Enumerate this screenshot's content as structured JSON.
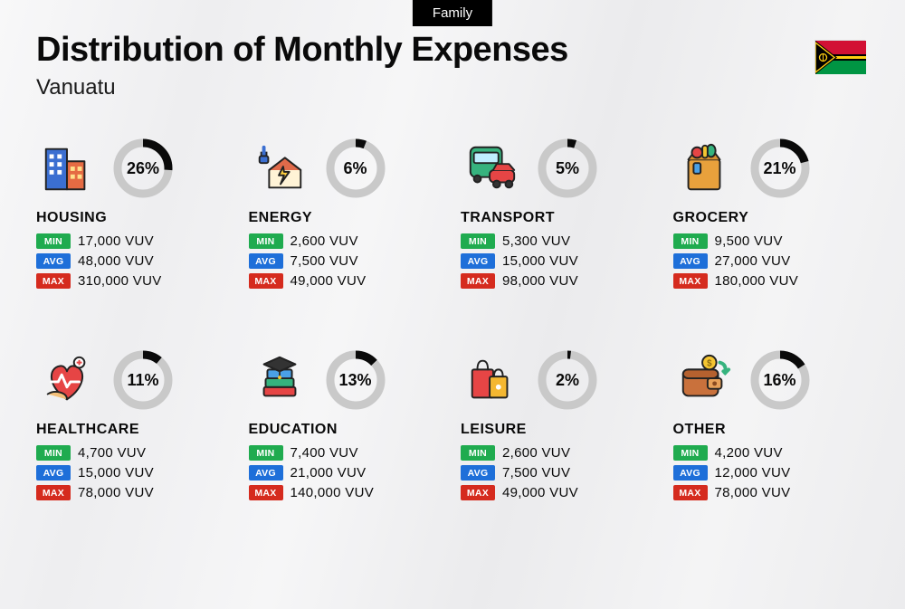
{
  "tag": "Family",
  "title": "Distribution of Monthly Expenses",
  "subtitle": "Vanuatu",
  "currency": "VUV",
  "colors": {
    "min_badge": "#1fab4f",
    "avg_badge": "#1e6fd9",
    "max_badge": "#d52b1e",
    "ring_track": "#c9c9c9",
    "ring_fill": "#0a0a0a",
    "text": "#0a0a0a"
  },
  "badges": {
    "min": "MIN",
    "avg": "AVG",
    "max": "MAX"
  },
  "ring": {
    "size": 72,
    "stroke": 9,
    "radius": 28
  },
  "flag": {
    "colors": {
      "red": "#d21034",
      "green": "#009543",
      "black": "#000000",
      "yellow": "#fdce12"
    }
  },
  "categories": [
    {
      "key": "housing",
      "label": "HOUSING",
      "pct": 26,
      "min": "17,000",
      "avg": "48,000",
      "max": "310,000",
      "icon": "buildings"
    },
    {
      "key": "energy",
      "label": "ENERGY",
      "pct": 6,
      "min": "2,600",
      "avg": "7,500",
      "max": "49,000",
      "icon": "energy-home"
    },
    {
      "key": "transport",
      "label": "TRANSPORT",
      "pct": 5,
      "min": "5,300",
      "avg": "15,000",
      "max": "98,000",
      "icon": "bus-car"
    },
    {
      "key": "grocery",
      "label": "GROCERY",
      "pct": 21,
      "min": "9,500",
      "avg": "27,000",
      "max": "180,000",
      "icon": "grocery-bag"
    },
    {
      "key": "healthcare",
      "label": "HEALTHCARE",
      "pct": 11,
      "min": "4,700",
      "avg": "15,000",
      "max": "78,000",
      "icon": "health-heart"
    },
    {
      "key": "education",
      "label": "EDUCATION",
      "pct": 13,
      "min": "7,400",
      "avg": "21,000",
      "max": "140,000",
      "icon": "books-cap"
    },
    {
      "key": "leisure",
      "label": "LEISURE",
      "pct": 2,
      "min": "2,600",
      "avg": "7,500",
      "max": "49,000",
      "icon": "shopping-bags"
    },
    {
      "key": "other",
      "label": "OTHER",
      "pct": 16,
      "min": "4,200",
      "avg": "12,000",
      "max": "78,000",
      "icon": "wallet"
    }
  ]
}
